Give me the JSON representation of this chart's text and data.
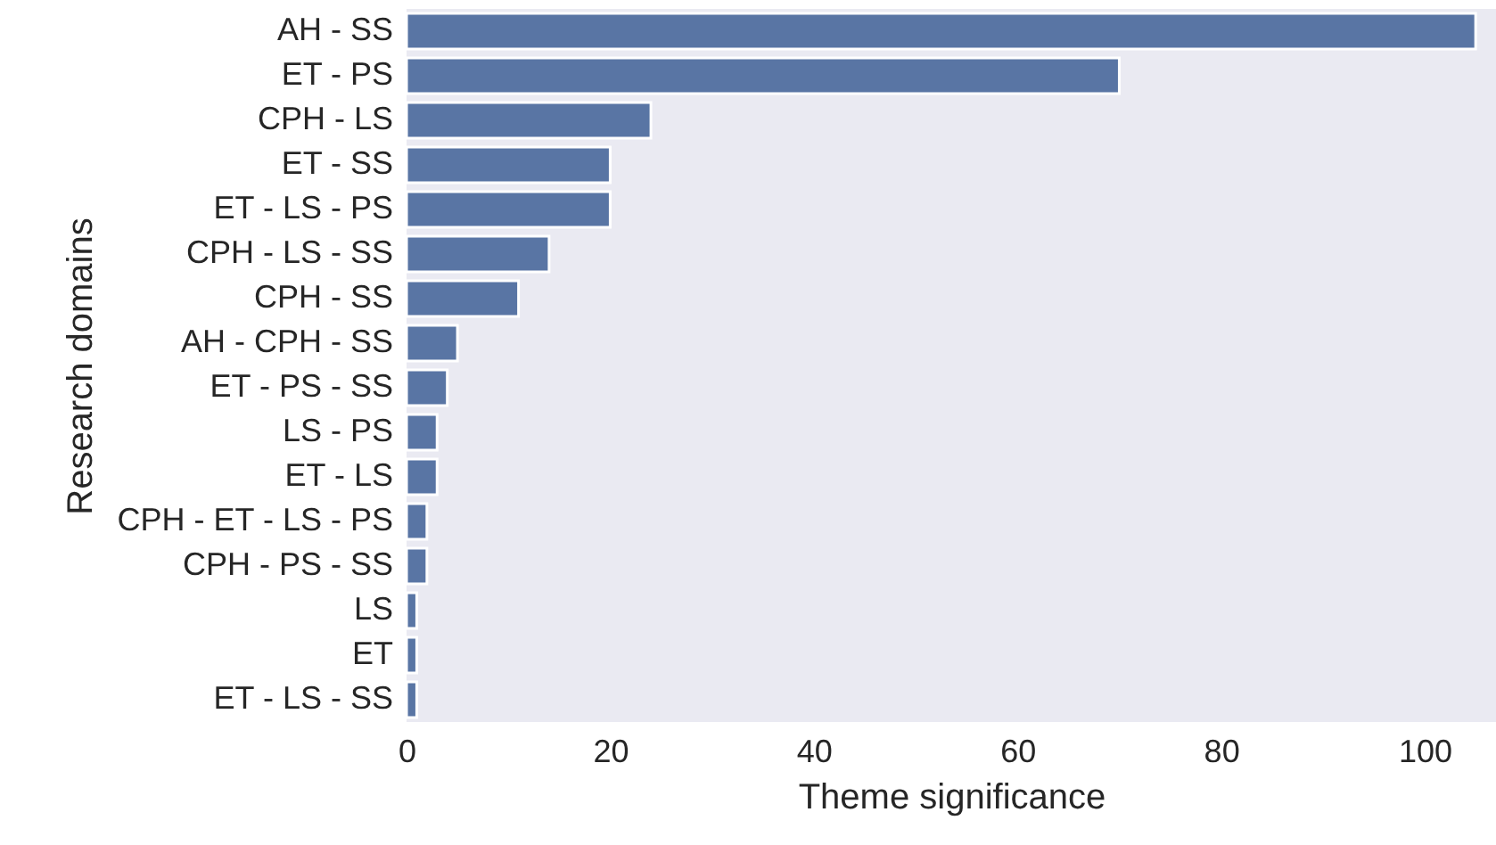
{
  "chart_data": {
    "type": "bar",
    "orientation": "horizontal",
    "xlabel": "Theme significance",
    "ylabel": "Research domains",
    "categories": [
      "AH - SS",
      "ET - PS",
      "CPH - LS",
      "ET - SS",
      "ET - LS - PS",
      "CPH - LS - SS",
      "CPH - SS",
      "AH - CPH - SS",
      "ET - PS - SS",
      "LS - PS",
      "ET - LS",
      "CPH - ET - LS - PS",
      "CPH - PS - SS",
      "LS",
      "ET",
      "ET - LS - SS"
    ],
    "values": [
      105,
      70,
      24,
      20,
      20,
      14,
      11,
      5,
      4,
      3,
      3,
      2,
      2,
      1,
      1,
      1
    ],
    "color": "#5975a4",
    "xlim": [
      0,
      107
    ],
    "xticks": [
      0,
      20,
      40,
      60,
      80,
      100
    ],
    "grid": false
  }
}
